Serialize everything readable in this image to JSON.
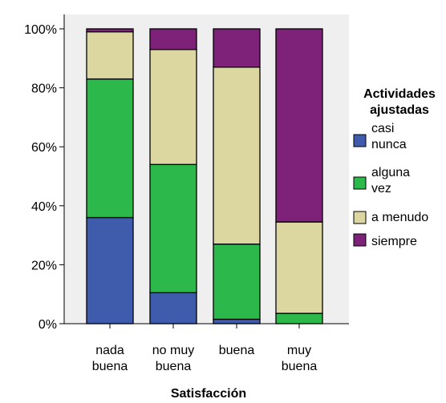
{
  "chart_data": {
    "type": "bar",
    "stacked": true,
    "percent": true,
    "categories": [
      [
        "nada",
        "buena"
      ],
      [
        "no muy",
        "buena"
      ],
      [
        "buena"
      ],
      [
        "muy",
        "buena"
      ]
    ],
    "series": [
      {
        "name": [
          "casi",
          "nunca"
        ],
        "values": [
          36,
          10.5,
          1.5,
          0
        ],
        "color": "#3e5bac"
      },
      {
        "name": [
          "alguna",
          "vez"
        ],
        "values": [
          47,
          43.5,
          25.5,
          3.5
        ],
        "color": "#2db84b"
      },
      {
        "name": [
          "a menudo"
        ],
        "values": [
          16,
          39,
          60,
          31
        ],
        "color": "#dcd7a0"
      },
      {
        "name": [
          "siempre"
        ],
        "values": [
          1,
          7,
          13,
          65.5
        ],
        "color": "#7e2179"
      }
    ],
    "xlabel": "Satisfacción",
    "ylabel": "",
    "ylim": [
      0,
      100
    ],
    "yticks": [
      0,
      20,
      40,
      60,
      80,
      100
    ],
    "ytick_labels": [
      "0%",
      "20%",
      "40%",
      "60%",
      "80%",
      "100%"
    ],
    "legend_title": [
      "Actividades",
      "ajustadas"
    ],
    "legend_position": "right",
    "plot_background": "#efefef"
  }
}
